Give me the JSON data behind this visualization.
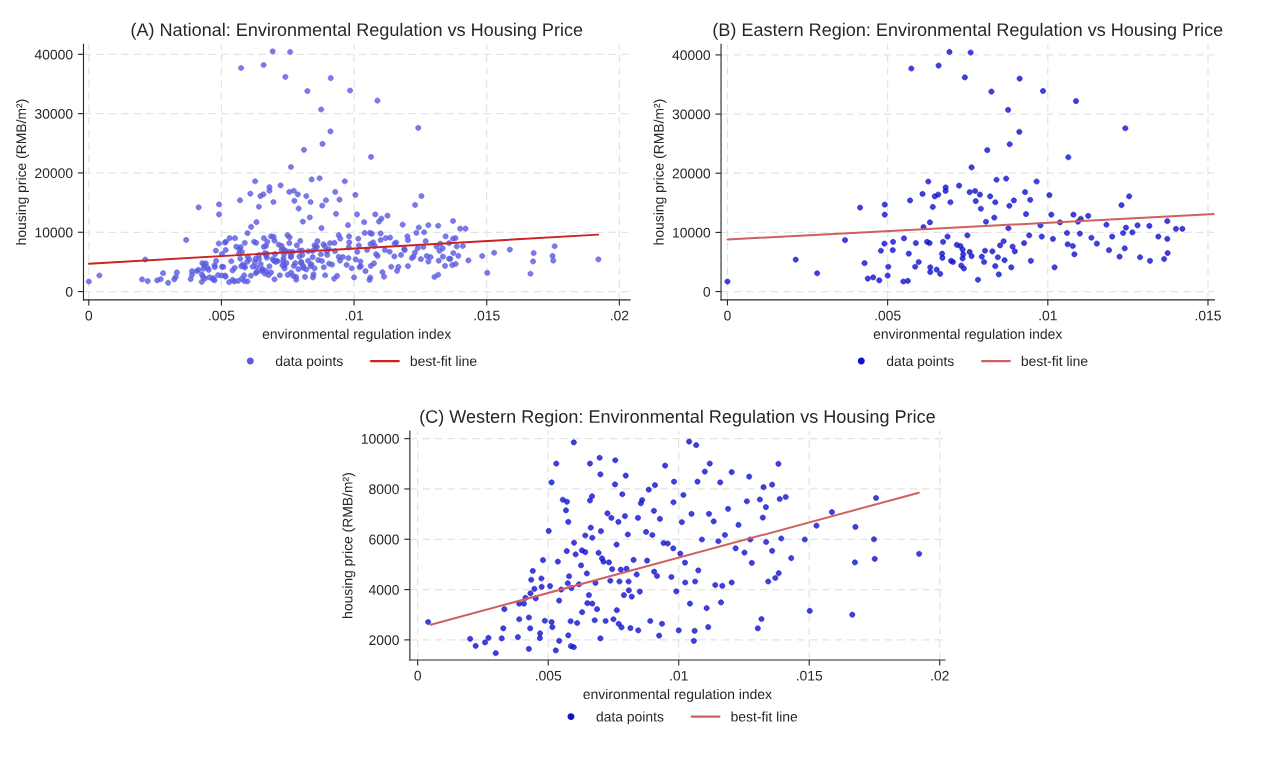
{
  "chart_data": [
    {
      "type": "scatter",
      "title": "(A) National: Environmental Regulation vs Housing Price",
      "xlabel": "environmental regulation index",
      "ylabel": "housing price (RMB/m²)",
      "xlim": [
        -0.0002,
        0.0204
      ],
      "ylim": [
        -1400,
        41700
      ],
      "xticks": [
        0,
        {
          "value": 0.005,
          "label": ".005"
        },
        {
          "value": 0.01,
          "label": ".01"
        },
        {
          "value": 0.015,
          "label": ".015"
        },
        {
          "value": 0.02,
          "label": ".02"
        }
      ],
      "yticks": [
        0,
        10000,
        20000,
        30000,
        40000
      ],
      "grid": true,
      "legend": "bottom",
      "series": [
        {
          "name": "data points",
          "marker": "circle",
          "color": "#5a5ae0",
          "x": [
            0.0,
            0.00213,
            0.0028,
            0.00367,
            0.00414,
            0.00428,
            0.00438,
            0.00455,
            0.00474,
            0.00479,
            0.00491,
            0.00491,
            0.0049,
            0.005,
            0.00502,
            0.00517,
            0.00516,
            0.00549,
            0.00551,
            0.00563,
            0.00566,
            0.0057,
            0.00574,
            0.00588,
            0.00586,
            0.00597,
            0.00609,
            0.00612,
            0.00623,
            0.00627,
            0.00631,
            0.00632,
            0.00633,
            0.00633,
            0.00641,
            0.00647,
            0.00653,
            0.00658,
            0.00659,
            0.00664,
            0.0067,
            0.00671,
            0.00673,
            0.00681,
            0.00681,
            0.00687,
            0.00693,
            0.00696,
            0.00698,
            0.00704,
            0.00716,
            0.00723,
            0.00727,
            0.0073,
            0.00734,
            0.00734,
            0.00736,
            0.00738,
            0.00741,
            0.00749,
            0.00756,
            0.00759,
            0.00762,
            0.00756,
            0.00762,
            0.00773,
            0.00775,
            0.00782,
            0.00788,
            0.00791,
            0.00794,
            0.00801,
            0.00804,
            0.00807,
            0.00811,
            0.0082,
            0.00824,
            0.00827,
            0.00833,
            0.00836,
            0.00836,
            0.0084,
            0.00844,
            0.00847,
            0.00851,
            0.00862,
            0.00865,
            0.0087,
            0.00876,
            0.00877,
            0.00881,
            0.0088,
            0.00886,
            0.0089,
            0.00894,
            0.00897,
            0.00911,
            0.00912,
            0.00929,
            0.00932,
            0.00926,
            0.00945,
            0.00942,
            0.00947,
            0.00965,
            0.00977,
            0.00981,
            0.00985,
            0.01005,
            0.01011,
            0.01016,
            0.01021,
            0.01038,
            0.0106,
            0.01064,
            0.01062,
            0.01078,
            0.0108,
            0.01083,
            0.01088,
            0.01094,
            0.011,
            0.01103,
            0.01126,
            0.01136,
            0.01153,
            0.01183,
            0.01191,
            0.01201,
            0.01224,
            0.0123,
            0.01235,
            0.0124,
            0.01242,
            0.01244,
            0.01254,
            0.01264,
            0.0128,
            0.01288,
            0.01319,
            0.01317,
            0.01345,
            0.01363,
            0.01374,
            0.01373,
            0.01373,
            0.014,
            0.0142,
            0.0004,
            0.00201,
            0.00222,
            0.00258,
            0.00271,
            0.00299,
            0.00322,
            0.00328,
            0.00332,
            0.00384,
            0.00389,
            0.00389,
            0.00407,
            0.00413,
            0.00426,
            0.00426,
            0.00431,
            0.00432,
            0.00435,
            0.00441,
            0.00447,
            0.00452,
            0.00468,
            0.00469,
            0.00474,
            0.00475,
            0.0048,
            0.00487,
            0.00507,
            0.00502,
            0.00513,
            0.00513,
            0.00516,
            0.00529,
            0.00531,
            0.00537,
            0.00542,
            0.00542,
            0.0055,
            0.00556,
            0.00568,
            0.00572,
            0.00571,
            0.00575,
            0.00577,
            0.00577,
            0.0058,
            0.00586,
            0.00589,
            0.00587,
            0.00598,
            0.00599,
            0.00598,
            0.00605,
            0.00611,
            0.00618,
            0.00626,
            0.00629,
            0.0063,
            0.00642,
            0.00642,
            0.00648,
            0.0065,
            0.00656,
            0.0066,
            0.0066,
            0.00663,
            0.00668,
            0.00669,
            0.00669,
            0.00678,
            0.00681,
            0.00687,
            0.00693,
            0.00697,
            0.007,
            0.007,
            0.00702,
            0.00706,
            0.00712,
            0.0072,
            0.00727,
            0.00733,
            0.00738,
            0.00742,
            0.00745,
            0.0075,
            0.00756,
            0.00757,
            0.00762,
            0.00763,
            0.00769,
            0.0077,
            0.00773,
            0.00778,
            0.00784,
            0.00781,
            0.0079,
            0.00794,
            0.00797,
            0.008,
            0.00805,
            0.00809,
            0.00808,
            0.00815,
            0.0082,
            0.00827,
            0.00839,
            0.00844,
            0.00845,
            0.00851,
            0.00855,
            0.0086,
            0.00875,
            0.00879,
            0.00885,
            0.00891,
            0.00899,
            0.00905,
            0.00906,
            0.00909,
            0.00917,
            0.00925,
            0.00928,
            0.00936,
            0.00942,
            0.00948,
            0.00958,
            0.00972,
            0.00979,
            0.0098,
            0.00982,
            0.00991,
            0.01,
            0.01006,
            0.01012,
            0.01018,
            0.01024,
            0.01025,
            0.0104,
            0.01043,
            0.01049,
            0.01058,
            0.01061,
            0.01063,
            0.01067,
            0.01072,
            0.01075,
            0.01089,
            0.011,
            0.01107,
            0.01113,
            0.01116,
            0.01119,
            0.01134,
            0.0114,
            0.01152,
            0.01159,
            0.01162,
            0.01167,
            0.01177,
            0.01189,
            0.01203,
            0.01203,
            0.01218,
            0.01229,
            0.01252,
            0.01261,
            0.0127,
            0.01274,
            0.0128,
            0.01303,
            0.01311,
            0.01317,
            0.01322,
            0.01325,
            0.01334,
            0.01335,
            0.01343,
            0.01358,
            0.01358,
            0.0137,
            0.01382,
            0.01383,
            0.01387,
            0.01393,
            0.0141,
            0.01431,
            0.01483,
            0.01502,
            0.01528,
            0.01587,
            0.01665,
            0.01677,
            0.01675,
            0.01748,
            0.01751,
            0.01756,
            0.01921
          ],
          "values": [
            1700,
            5400,
            3100,
            8700,
            14200,
            4800,
            2200,
            2400,
            1900,
            6900,
            14700,
            13000,
            8100,
            2700,
            4200,
            8400,
            7000,
            1700,
            9000,
            1800,
            6400,
            15400,
            37700,
            8200,
            4200,
            5000,
            16500,
            10900,
            8400,
            18600,
            8200,
            11700,
            4100,
            3300,
            14300,
            16100,
            3700,
            16400,
            38200,
            3000,
            6400,
            5700,
            8400,
            17600,
            17000,
            9300,
            40500,
            15100,
            5200,
            5000,
            7900,
            17900,
            7700,
            4400,
            7100,
            5600,
            6300,
            3900,
            36200,
            9500,
            16800,
            40400,
            21000,
            6700,
            6000,
            17000,
            15300,
            2000,
            16400,
            14000,
            5900,
            5000,
            6900,
            11800,
            23900,
            16100,
            33800,
            6800,
            12500,
            15100,
            4300,
            18900,
            5800,
            2900,
            7800,
            8500,
            5300,
            19100,
            30700,
            10700,
            24900,
            14500,
            4100,
            7600,
            15400,
            6800,
            27000,
            36000,
            16800,
            13100,
            8200,
            15500,
            9500,
            5200,
            18600,
            11200,
            9300,
            33900,
            16300,
            13000,
            8900,
            4100,
            11700,
            9900,
            22700,
            8000,
            7700,
            13000,
            6300,
            32200,
            11800,
            9800,
            12300,
            12800,
            9100,
            8100,
            11300,
            7000,
            9300,
            5900,
            14600,
            9900,
            7300,
            27600,
            10800,
            16100,
            10000,
            11200,
            5800,
            5200,
            11100,
            9300,
            5500,
            6500,
            8900,
            11900,
            10600,
            10600,
            2710,
            2040,
            1760,
            1900,
            2080,
            1470,
            2060,
            2460,
            3220,
            2110,
            2820,
            3440,
            3440,
            3670,
            1640,
            2890,
            2460,
            3850,
            4390,
            4740,
            4030,
            3650,
            2070,
            2260,
            4440,
            4110,
            5170,
            2760,
            4140,
            6330,
            8260,
            2710,
            2510,
            1580,
            9010,
            5110,
            3560,
            1960,
            4000,
            7570,
            7150,
            7490,
            5530,
            4250,
            6690,
            2180,
            4530,
            2740,
            4060,
            1750,
            9850,
            5860,
            1710,
            5400,
            2670,
            4210,
            4960,
            5560,
            3100,
            6150,
            5490,
            4640,
            3460,
            3780,
            9010,
            7540,
            6460,
            7710,
            6060,
            3440,
            2780,
            4260,
            3220,
            5460,
            9240,
            8580,
            2060,
            6320,
            5240,
            5110,
            2750,
            7030,
            5080,
            4350,
            6850,
            4810,
            2820,
            8180,
            9140,
            5790,
            3180,
            6690,
            2640,
            4320,
            4790,
            7790,
            2500,
            3780,
            6920,
            8530,
            4830,
            6190,
            3970,
            4320,
            2470,
            3720,
            5180,
            4600,
            6850,
            2380,
            3920,
            7430,
            7560,
            6290,
            5150,
            7970,
            2750,
            6170,
            7130,
            4710,
            8150,
            4540,
            2170,
            6810,
            2640,
            5850,
            8930,
            5830,
            4500,
            5640,
            7470,
            8290,
            3930,
            2380,
            5430,
            6680,
            7760,
            5070,
            4280,
            9880,
            3440,
            7010,
            1960,
            2360,
            4320,
            9740,
            8290,
            4760,
            5990,
            8690,
            3260,
            2510,
            7010,
            9010,
            6710,
            4180,
            5920,
            8260,
            3490,
            4150,
            6170,
            7210,
            8670,
            4280,
            5640,
            6570,
            5470,
            7510,
            8490,
            5990,
            5060,
            2460,
            7580,
            2830,
            6860,
            8070,
            7280,
            5890,
            4320,
            5540,
            8170,
            4460,
            9000,
            4650,
            7600,
            6030,
            7680,
            5250,
            5990,
            3150,
            6540,
            7080,
            3000,
            6490,
            5080,
            6000,
            5220,
            7640,
            5420
          ]
        },
        {
          "name": "best-fit line",
          "type": "line",
          "color": "#cc2222",
          "x": [
            0,
            0.0192
          ],
          "values": [
            4700,
            9600
          ]
        }
      ]
    },
    {
      "type": "scatter",
      "title": "(B) Eastern Region: Environmental Regulation vs Housing Price",
      "xlabel": "environmental regulation index",
      "ylabel": "housing price (RMB/m²)",
      "xlim": [
        -0.0002,
        0.0152
      ],
      "ylim": [
        -1400,
        41800
      ],
      "xticks": [
        0,
        {
          "value": 0.005,
          "label": ".005"
        },
        {
          "value": 0.01,
          "label": ".01"
        },
        {
          "value": 0.015,
          "label": ".015"
        }
      ],
      "yticks": [
        0,
        10000,
        20000,
        30000,
        40000
      ],
      "grid": true,
      "legend": "bottom",
      "series": [
        {
          "name": "data points",
          "marker": "circle",
          "color": "#1010d0",
          "x": [
            0.0,
            0.00213,
            0.0028,
            0.00367,
            0.00414,
            0.00428,
            0.00438,
            0.00455,
            0.00474,
            0.00479,
            0.00491,
            0.00491,
            0.0049,
            0.005,
            0.00502,
            0.00517,
            0.00516,
            0.00549,
            0.00551,
            0.00563,
            0.00566,
            0.0057,
            0.00574,
            0.00588,
            0.00586,
            0.00597,
            0.00609,
            0.00612,
            0.00623,
            0.00627,
            0.00631,
            0.00632,
            0.00633,
            0.00633,
            0.00641,
            0.00647,
            0.00653,
            0.00658,
            0.00659,
            0.00664,
            0.0067,
            0.00671,
            0.00673,
            0.00681,
            0.00681,
            0.00687,
            0.00693,
            0.00696,
            0.00698,
            0.00704,
            0.00716,
            0.00723,
            0.00727,
            0.0073,
            0.00734,
            0.00734,
            0.00736,
            0.00738,
            0.00741,
            0.00749,
            0.00756,
            0.00759,
            0.00762,
            0.00756,
            0.00762,
            0.00773,
            0.00775,
            0.00782,
            0.00788,
            0.00791,
            0.00794,
            0.00801,
            0.00804,
            0.00807,
            0.00811,
            0.0082,
            0.00824,
            0.00827,
            0.00833,
            0.00836,
            0.00836,
            0.0084,
            0.00844,
            0.00847,
            0.00851,
            0.00862,
            0.00865,
            0.0087,
            0.00876,
            0.00877,
            0.00881,
            0.0088,
            0.00886,
            0.0089,
            0.00894,
            0.00897,
            0.00911,
            0.00912,
            0.00929,
            0.00932,
            0.00926,
            0.00945,
            0.00942,
            0.00947,
            0.00965,
            0.00977,
            0.00981,
            0.00985,
            0.01005,
            0.01011,
            0.01016,
            0.01021,
            0.01038,
            0.0106,
            0.01064,
            0.01062,
            0.01078,
            0.0108,
            0.01083,
            0.01088,
            0.01094,
            0.011,
            0.01103,
            0.01126,
            0.01136,
            0.01153,
            0.01183,
            0.01191,
            0.01201,
            0.01224,
            0.0123,
            0.01235,
            0.0124,
            0.01242,
            0.01244,
            0.01254,
            0.01264,
            0.0128,
            0.01288,
            0.01319,
            0.01317,
            0.01345,
            0.01363,
            0.01374,
            0.01373,
            0.01373,
            0.014,
            0.0142
          ],
          "values": [
            1700,
            5400,
            3100,
            8700,
            14200,
            4800,
            2200,
            2400,
            1900,
            6900,
            14700,
            13000,
            8100,
            2700,
            4200,
            8400,
            7000,
            1700,
            9000,
            1800,
            6400,
            15400,
            37700,
            8200,
            4200,
            5000,
            16500,
            10900,
            8400,
            18600,
            8200,
            11700,
            4100,
            3300,
            14300,
            16100,
            3700,
            16400,
            38200,
            3000,
            6400,
            5700,
            8400,
            17600,
            17000,
            9300,
            40500,
            15100,
            5200,
            5000,
            7900,
            17900,
            7700,
            4400,
            7100,
            5600,
            6300,
            3900,
            36200,
            9500,
            16800,
            40400,
            21000,
            6700,
            6000,
            17000,
            15300,
            2000,
            16400,
            14000,
            5900,
            5000,
            6900,
            11800,
            23900,
            16100,
            33800,
            6800,
            12500,
            15100,
            4300,
            18900,
            5800,
            2900,
            7800,
            8500,
            5300,
            19100,
            30700,
            10700,
            24900,
            14500,
            4100,
            7600,
            15400,
            6800,
            27000,
            36000,
            16800,
            13100,
            8200,
            15500,
            9500,
            5200,
            18600,
            11200,
            9300,
            33900,
            16300,
            13000,
            8900,
            4100,
            11700,
            9900,
            22700,
            8000,
            7700,
            13000,
            6300,
            32200,
            11800,
            9800,
            12300,
            12800,
            9100,
            8100,
            11300,
            7000,
            9300,
            5900,
            14600,
            9900,
            7300,
            27600,
            10800,
            16100,
            10000,
            11200,
            5800,
            5200,
            11100,
            9300,
            5500,
            6500,
            8900,
            11900,
            10600,
            10600
          ]
        },
        {
          "name": "best-fit line",
          "type": "line",
          "color": "#d06060",
          "x": [
            0,
            0.0152
          ],
          "values": [
            8800,
            13100
          ]
        }
      ]
    },
    {
      "type": "scatter",
      "title": "(C) Western Region: Environmental Regulation vs Housing Price",
      "xlabel": "environmental regulation index",
      "ylabel": "housing price (RMB/m²)",
      "xlim": [
        -0.0003,
        0.0202
      ],
      "ylim": [
        1200,
        10300
      ],
      "xticks": [
        0,
        {
          "value": 0.005,
          "label": ".005"
        },
        {
          "value": 0.01,
          "label": ".01"
        },
        {
          "value": 0.015,
          "label": ".015"
        },
        {
          "value": 0.02,
          "label": ".02"
        }
      ],
      "yticks": [
        2000,
        4000,
        6000,
        8000,
        10000
      ],
      "grid": true,
      "legend": "bottom",
      "series": [
        {
          "name": "data points",
          "marker": "circle",
          "color": "#1010d0",
          "x": [
            0.0004,
            0.00201,
            0.00222,
            0.00258,
            0.00271,
            0.00299,
            0.00322,
            0.00328,
            0.00332,
            0.00384,
            0.00389,
            0.00389,
            0.00407,
            0.00413,
            0.00426,
            0.00426,
            0.00431,
            0.00432,
            0.00435,
            0.00441,
            0.00447,
            0.00452,
            0.00468,
            0.00469,
            0.00474,
            0.00475,
            0.0048,
            0.00487,
            0.00507,
            0.00502,
            0.00513,
            0.00513,
            0.00516,
            0.00529,
            0.00531,
            0.00537,
            0.00542,
            0.00542,
            0.0055,
            0.00556,
            0.00568,
            0.00572,
            0.00571,
            0.00575,
            0.00577,
            0.00577,
            0.0058,
            0.00586,
            0.00589,
            0.00587,
            0.00598,
            0.00599,
            0.00598,
            0.00605,
            0.00611,
            0.00618,
            0.00626,
            0.00629,
            0.0063,
            0.00642,
            0.00642,
            0.00648,
            0.0065,
            0.00656,
            0.0066,
            0.0066,
            0.00663,
            0.00668,
            0.00669,
            0.00669,
            0.00678,
            0.00681,
            0.00687,
            0.00693,
            0.00697,
            0.007,
            0.007,
            0.00702,
            0.00706,
            0.00712,
            0.0072,
            0.00727,
            0.00733,
            0.00738,
            0.00742,
            0.00745,
            0.0075,
            0.00756,
            0.00757,
            0.00762,
            0.00763,
            0.00769,
            0.0077,
            0.00773,
            0.00778,
            0.00784,
            0.00781,
            0.0079,
            0.00794,
            0.00797,
            0.008,
            0.00805,
            0.00809,
            0.00808,
            0.00815,
            0.0082,
            0.00827,
            0.00839,
            0.00844,
            0.00845,
            0.00851,
            0.00855,
            0.0086,
            0.00875,
            0.00879,
            0.00885,
            0.00891,
            0.00899,
            0.00905,
            0.00906,
            0.00909,
            0.00917,
            0.00925,
            0.00928,
            0.00936,
            0.00942,
            0.00948,
            0.00958,
            0.00972,
            0.00979,
            0.0098,
            0.00982,
            0.00991,
            0.01,
            0.01006,
            0.01012,
            0.01018,
            0.01024,
            0.01025,
            0.0104,
            0.01043,
            0.01049,
            0.01058,
            0.01061,
            0.01063,
            0.01067,
            0.01072,
            0.01075,
            0.01089,
            0.011,
            0.01107,
            0.01113,
            0.01116,
            0.01119,
            0.01134,
            0.0114,
            0.01152,
            0.01159,
            0.01162,
            0.01167,
            0.01177,
            0.01189,
            0.01203,
            0.01203,
            0.01218,
            0.01229,
            0.01252,
            0.01261,
            0.0127,
            0.01274,
            0.0128,
            0.01303,
            0.01311,
            0.01317,
            0.01322,
            0.01325,
            0.01334,
            0.01335,
            0.01343,
            0.01358,
            0.01358,
            0.0137,
            0.01382,
            0.01383,
            0.01387,
            0.01393,
            0.0141,
            0.01431,
            0.01483,
            0.01502,
            0.01528,
            0.01587,
            0.01665,
            0.01677,
            0.01675,
            0.01748,
            0.01751,
            0.01756,
            0.01921
          ],
          "values": [
            2710,
            2040,
            1760,
            1900,
            2080,
            1470,
            2060,
            2460,
            3220,
            2110,
            2820,
            3440,
            3440,
            3670,
            1640,
            2890,
            2460,
            3850,
            4390,
            4740,
            4030,
            3650,
            2070,
            2260,
            4440,
            4110,
            5170,
            2760,
            4140,
            6330,
            8260,
            2710,
            2510,
            1580,
            9010,
            5110,
            3560,
            1960,
            4000,
            7570,
            7150,
            7490,
            5530,
            4250,
            6690,
            2180,
            4530,
            2740,
            4060,
            1750,
            9850,
            5860,
            1710,
            5400,
            2670,
            4210,
            4960,
            5560,
            3100,
            6150,
            5490,
            4640,
            3460,
            3780,
            9010,
            7540,
            6460,
            7710,
            6060,
            3440,
            2780,
            4260,
            3220,
            5460,
            9240,
            8580,
            2060,
            6320,
            5240,
            5110,
            2750,
            7030,
            5080,
            4350,
            6850,
            4810,
            2820,
            8180,
            9140,
            5790,
            3180,
            6690,
            2640,
            4320,
            4790,
            7790,
            2500,
            3780,
            6920,
            8530,
            4830,
            6190,
            3970,
            4320,
            2470,
            3720,
            5180,
            4600,
            6850,
            2380,
            3920,
            7430,
            7560,
            6290,
            5150,
            7970,
            2750,
            6170,
            7130,
            4710,
            8150,
            4540,
            2170,
            6810,
            2640,
            5850,
            8930,
            5830,
            4500,
            5640,
            7470,
            8290,
            3930,
            2380,
            5430,
            6680,
            7760,
            5070,
            4280,
            9880,
            3440,
            7010,
            1960,
            2360,
            4320,
            9740,
            8290,
            4760,
            5990,
            8690,
            3260,
            2510,
            7010,
            9010,
            6710,
            4180,
            5920,
            8260,
            3490,
            4150,
            6170,
            7210,
            8670,
            4280,
            5640,
            6570,
            5470,
            7510,
            8490,
            5990,
            5060,
            2460,
            7580,
            2830,
            6860,
            8070,
            7280,
            5890,
            4320,
            5540,
            8170,
            4460,
            9000,
            4650,
            7600,
            6030,
            7680,
            5250,
            5990,
            3150,
            6540,
            7080,
            3000,
            6490,
            5080,
            6000,
            5220,
            7640,
            5420
          ]
        },
        {
          "name": "best-fit line",
          "type": "line",
          "color": "#d06060",
          "x": [
            0.0005,
            0.0192
          ],
          "values": [
            2600,
            7850
          ]
        }
      ]
    }
  ]
}
